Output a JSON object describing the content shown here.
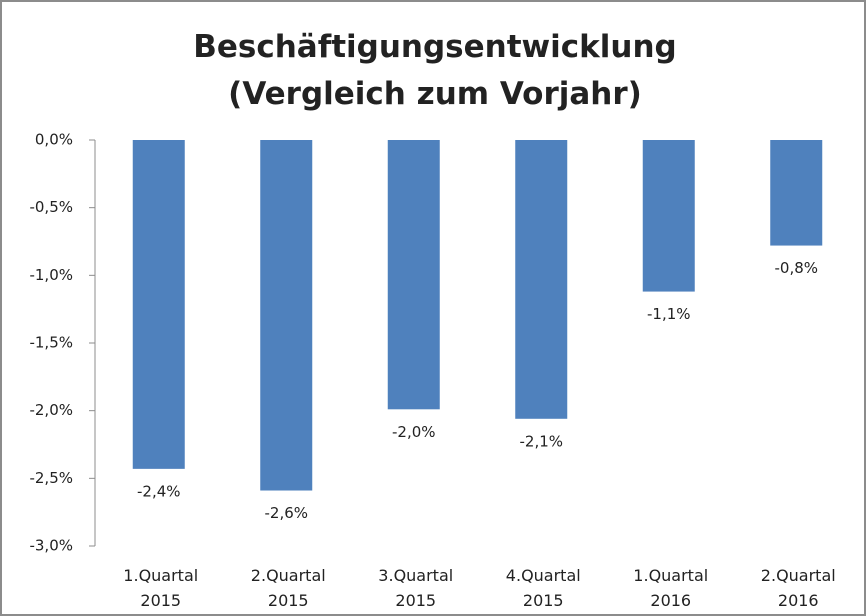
{
  "chart_data": {
    "type": "bar",
    "title": "Beschäftigungsentwicklung\n(Vergleich zum Vorjahr)",
    "categories": [
      "1.Quartal\n2015",
      "2.Quartal\n2015",
      "3.Quartal\n2015",
      "4.Quartal\n2015",
      "1.Quartal\n2016",
      "2.Quartal\n2016"
    ],
    "values": [
      -2.43,
      -2.59,
      -1.99,
      -2.06,
      -1.12,
      -0.78
    ],
    "value_labels": [
      "-2,4%",
      "-2,6%",
      "-2,0%",
      "-2,1%",
      "-1,1%",
      "-0,8%"
    ],
    "color": "#4f81bd",
    "ylim": [
      -3,
      0
    ],
    "yticks": [
      {
        "value": 0,
        "label": "0,0%"
      },
      {
        "value": -0.5,
        "label": "-0,5%"
      },
      {
        "value": -1,
        "label": "-1,0%"
      },
      {
        "value": -1.5,
        "label": "-1,5%"
      },
      {
        "value": -2,
        "label": "-2,0%"
      },
      {
        "value": -2.5,
        "label": "-2,5%"
      },
      {
        "value": -3,
        "label": "-3,0%"
      }
    ],
    "grid": false
  }
}
